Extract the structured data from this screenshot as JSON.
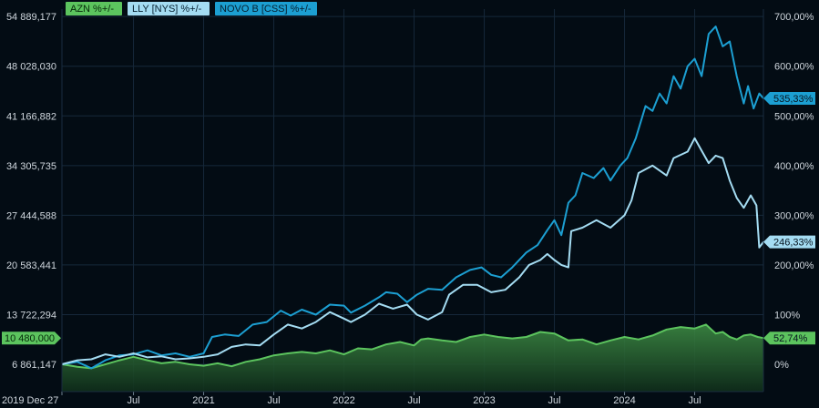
{
  "chart_data": {
    "type": "line",
    "theme": {
      "background": "#030c14",
      "grid": "#16283a",
      "axis_text": "#cfd6dd"
    },
    "legend": [
      {
        "label": "AZN %+/-",
        "color": "#5cc45e",
        "text_color": "#062a0a"
      },
      {
        "label": "LLY [NYS] %+/-",
        "color": "#a4dcf2",
        "text_color": "#062030"
      },
      {
        "label": "NOVO B [CSS] %+/-",
        "color": "#1c9fd2",
        "text_color": "#062030"
      }
    ],
    "x_axis": {
      "start": 2019.99,
      "end": 2024.99,
      "ticks": [
        {
          "label": "2019 Dec 27",
          "x": 2019.99
        },
        {
          "label": "Jul",
          "x": 2020.5
        },
        {
          "label": "2021",
          "x": 2021.0
        },
        {
          "label": "Jul",
          "x": 2021.5
        },
        {
          "label": "2022",
          "x": 2022.0
        },
        {
          "label": "Jul",
          "x": 2022.5
        },
        {
          "label": "2023",
          "x": 2023.0
        },
        {
          "label": "Jul",
          "x": 2023.5
        },
        {
          "label": "2024",
          "x": 2024.0
        },
        {
          "label": "Jul",
          "x": 2024.5
        }
      ]
    },
    "y_left": {
      "ticks": [
        "54 889,177",
        "48 028,030",
        "41 166,882",
        "34 305,735",
        "27 444,588",
        "20 583,441",
        "13 722,294",
        "6 861,147"
      ],
      "tick_pct": [
        700,
        600,
        500,
        400,
        300,
        200,
        100,
        0
      ],
      "current": {
        "label": "10 480,000",
        "pct": 52.74,
        "color": "#5cc45e"
      }
    },
    "y_right": {
      "min": -55,
      "max": 715,
      "ticks": [
        "700,00%",
        "600,00%",
        "500,00%",
        "400,00%",
        "300,00%",
        "200,00%",
        "100%",
        "0%"
      ],
      "tick_values": [
        700,
        600,
        500,
        400,
        300,
        200,
        100,
        0
      ]
    },
    "series": [
      {
        "name": "NOVO B [CSS] %+/-",
        "color": "#1c9fd2",
        "end_label": "535,33%",
        "points": [
          [
            2019.99,
            0
          ],
          [
            2020.1,
            5
          ],
          [
            2020.2,
            -8
          ],
          [
            2020.3,
            8
          ],
          [
            2020.4,
            18
          ],
          [
            2020.5,
            20
          ],
          [
            2020.6,
            28
          ],
          [
            2020.7,
            18
          ],
          [
            2020.8,
            22
          ],
          [
            2020.9,
            15
          ],
          [
            2021.0,
            22
          ],
          [
            2021.06,
            55
          ],
          [
            2021.15,
            60
          ],
          [
            2021.25,
            57
          ],
          [
            2021.35,
            80
          ],
          [
            2021.45,
            85
          ],
          [
            2021.55,
            108
          ],
          [
            2021.62,
            98
          ],
          [
            2021.7,
            110
          ],
          [
            2021.8,
            100
          ],
          [
            2021.9,
            120
          ],
          [
            2022.0,
            118
          ],
          [
            2022.05,
            104
          ],
          [
            2022.15,
            118
          ],
          [
            2022.25,
            135
          ],
          [
            2022.3,
            145
          ],
          [
            2022.38,
            142
          ],
          [
            2022.45,
            125
          ],
          [
            2022.52,
            140
          ],
          [
            2022.6,
            152
          ],
          [
            2022.7,
            150
          ],
          [
            2022.8,
            175
          ],
          [
            2022.9,
            190
          ],
          [
            2022.98,
            195
          ],
          [
            2023.05,
            180
          ],
          [
            2023.12,
            175
          ],
          [
            2023.2,
            195
          ],
          [
            2023.3,
            225
          ],
          [
            2023.38,
            240
          ],
          [
            2023.45,
            270
          ],
          [
            2023.5,
            290
          ],
          [
            2023.55,
            260
          ],
          [
            2023.6,
            325
          ],
          [
            2023.65,
            340
          ],
          [
            2023.7,
            385
          ],
          [
            2023.78,
            375
          ],
          [
            2023.85,
            395
          ],
          [
            2023.9,
            370
          ],
          [
            2023.97,
            400
          ],
          [
            2024.02,
            415
          ],
          [
            2024.08,
            455
          ],
          [
            2024.15,
            520
          ],
          [
            2024.2,
            510
          ],
          [
            2024.25,
            545
          ],
          [
            2024.3,
            525
          ],
          [
            2024.35,
            580
          ],
          [
            2024.4,
            555
          ],
          [
            2024.45,
            600
          ],
          [
            2024.5,
            615
          ],
          [
            2024.55,
            580
          ],
          [
            2024.6,
            665
          ],
          [
            2024.65,
            680
          ],
          [
            2024.7,
            640
          ],
          [
            2024.75,
            650
          ],
          [
            2024.8,
            580
          ],
          [
            2024.85,
            525
          ],
          [
            2024.88,
            560
          ],
          [
            2024.92,
            515
          ],
          [
            2024.96,
            545
          ],
          [
            2024.99,
            535.33
          ]
        ]
      },
      {
        "name": "LLY [NYS] %+/-",
        "color": "#a4dcf2",
        "end_label": "246,33%",
        "points": [
          [
            2019.99,
            0
          ],
          [
            2020.1,
            8
          ],
          [
            2020.2,
            10
          ],
          [
            2020.3,
            20
          ],
          [
            2020.4,
            15
          ],
          [
            2020.5,
            22
          ],
          [
            2020.6,
            14
          ],
          [
            2020.7,
            16
          ],
          [
            2020.8,
            10
          ],
          [
            2020.9,
            12
          ],
          [
            2021.0,
            15
          ],
          [
            2021.1,
            20
          ],
          [
            2021.2,
            35
          ],
          [
            2021.3,
            40
          ],
          [
            2021.4,
            38
          ],
          [
            2021.5,
            60
          ],
          [
            2021.6,
            80
          ],
          [
            2021.7,
            72
          ],
          [
            2021.8,
            85
          ],
          [
            2021.9,
            105
          ],
          [
            2022.0,
            92
          ],
          [
            2022.05,
            85
          ],
          [
            2022.15,
            100
          ],
          [
            2022.25,
            122
          ],
          [
            2022.35,
            112
          ],
          [
            2022.45,
            120
          ],
          [
            2022.52,
            100
          ],
          [
            2022.6,
            90
          ],
          [
            2022.7,
            105
          ],
          [
            2022.75,
            140
          ],
          [
            2022.85,
            160
          ],
          [
            2022.95,
            160
          ],
          [
            2023.05,
            145
          ],
          [
            2023.15,
            150
          ],
          [
            2023.25,
            175
          ],
          [
            2023.32,
            200
          ],
          [
            2023.4,
            210
          ],
          [
            2023.45,
            222
          ],
          [
            2023.5,
            210
          ],
          [
            2023.55,
            200
          ],
          [
            2023.6,
            195
          ],
          [
            2023.62,
            268
          ],
          [
            2023.7,
            275
          ],
          [
            2023.8,
            290
          ],
          [
            2023.9,
            275
          ],
          [
            2024.0,
            300
          ],
          [
            2024.05,
            330
          ],
          [
            2024.1,
            385
          ],
          [
            2024.2,
            400
          ],
          [
            2024.3,
            380
          ],
          [
            2024.35,
            415
          ],
          [
            2024.45,
            428
          ],
          [
            2024.5,
            455
          ],
          [
            2024.55,
            430
          ],
          [
            2024.6,
            405
          ],
          [
            2024.65,
            420
          ],
          [
            2024.7,
            415
          ],
          [
            2024.75,
            370
          ],
          [
            2024.8,
            335
          ],
          [
            2024.85,
            315
          ],
          [
            2024.9,
            340
          ],
          [
            2024.94,
            320
          ],
          [
            2024.96,
            235
          ],
          [
            2024.99,
            246.33
          ]
        ]
      },
      {
        "name": "AZN %+/-",
        "color": "#5cc45e",
        "fill": true,
        "end_label": "52,74%",
        "points": [
          [
            2019.99,
            0
          ],
          [
            2020.1,
            -5
          ],
          [
            2020.2,
            -8
          ],
          [
            2020.3,
            0
          ],
          [
            2020.4,
            8
          ],
          [
            2020.5,
            15
          ],
          [
            2020.6,
            8
          ],
          [
            2020.7,
            2
          ],
          [
            2020.8,
            5
          ],
          [
            2020.9,
            0
          ],
          [
            2021.0,
            -3
          ],
          [
            2021.1,
            2
          ],
          [
            2021.2,
            -4
          ],
          [
            2021.3,
            5
          ],
          [
            2021.4,
            10
          ],
          [
            2021.5,
            18
          ],
          [
            2021.6,
            22
          ],
          [
            2021.7,
            25
          ],
          [
            2021.8,
            22
          ],
          [
            2021.9,
            28
          ],
          [
            2022.0,
            20
          ],
          [
            2022.1,
            32
          ],
          [
            2022.2,
            30
          ],
          [
            2022.3,
            40
          ],
          [
            2022.4,
            45
          ],
          [
            2022.5,
            38
          ],
          [
            2022.55,
            50
          ],
          [
            2022.6,
            52
          ],
          [
            2022.7,
            48
          ],
          [
            2022.8,
            45
          ],
          [
            2022.9,
            55
          ],
          [
            2023.0,
            60
          ],
          [
            2023.1,
            55
          ],
          [
            2023.2,
            52
          ],
          [
            2023.3,
            55
          ],
          [
            2023.4,
            65
          ],
          [
            2023.5,
            62
          ],
          [
            2023.6,
            48
          ],
          [
            2023.7,
            50
          ],
          [
            2023.8,
            40
          ],
          [
            2023.9,
            48
          ],
          [
            2024.0,
            55
          ],
          [
            2024.1,
            50
          ],
          [
            2024.2,
            58
          ],
          [
            2024.3,
            70
          ],
          [
            2024.4,
            75
          ],
          [
            2024.5,
            72
          ],
          [
            2024.58,
            80
          ],
          [
            2024.65,
            62
          ],
          [
            2024.7,
            65
          ],
          [
            2024.75,
            55
          ],
          [
            2024.8,
            50
          ],
          [
            2024.85,
            58
          ],
          [
            2024.9,
            60
          ],
          [
            2024.95,
            55
          ],
          [
            2024.99,
            52.74
          ]
        ]
      }
    ]
  }
}
